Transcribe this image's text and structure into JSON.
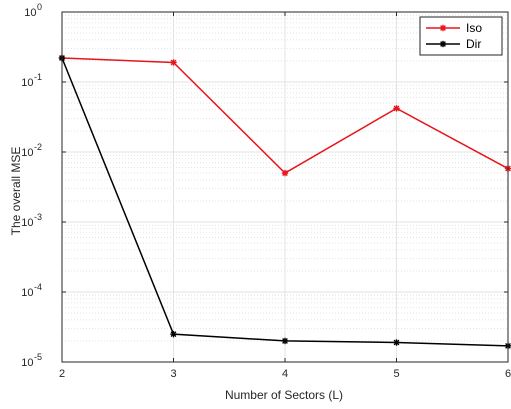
{
  "chart_data": {
    "type": "line",
    "title": "",
    "xlabel": "Number of Sectors (L)",
    "ylabel": "The overall MSE",
    "xlim": [
      2,
      6
    ],
    "ylim": [
      1e-05,
      1
    ],
    "yscale": "log",
    "grid": "on (major and minor)",
    "legend_position": "top-right",
    "x": [
      2,
      3,
      4,
      5,
      6
    ],
    "x_tick_labels": [
      "2",
      "3",
      "4",
      "5",
      "6"
    ],
    "y_tick_labels": [
      {
        "base": "10",
        "exp": "0",
        "value": 1
      },
      {
        "base": "10",
        "exp": "-1",
        "value": 0.1
      },
      {
        "base": "10",
        "exp": "-2",
        "value": 0.01
      },
      {
        "base": "10",
        "exp": "-3",
        "value": 0.001
      },
      {
        "base": "10",
        "exp": "-4",
        "value": 0.0001
      },
      {
        "base": "10",
        "exp": "-5",
        "value": 1e-05
      }
    ],
    "series": [
      {
        "name": "Iso",
        "color": "#e8141b",
        "marker": "asterisk",
        "values": [
          0.22,
          0.19,
          0.005,
          0.042,
          0.0058
        ]
      },
      {
        "name": "Dir",
        "color": "#000000",
        "marker": "asterisk",
        "values": [
          0.22,
          2.5e-05,
          2e-05,
          1.9e-05,
          1.7e-05
        ]
      }
    ]
  }
}
